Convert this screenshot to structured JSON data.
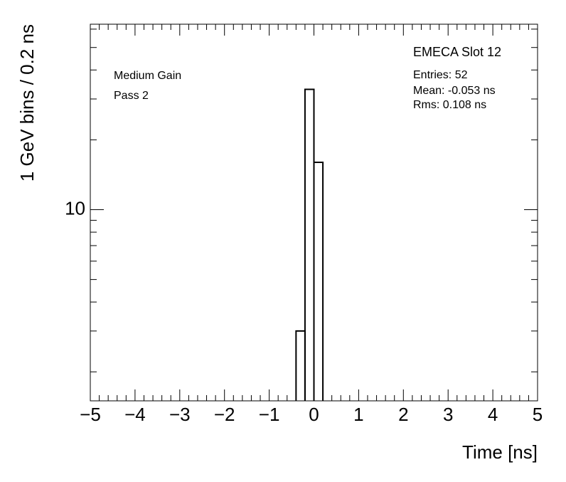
{
  "chart_data": {
    "type": "histogram",
    "xlabel": "Time [ns]",
    "ylabel": "1 GeV bins / 0.2 ns",
    "annotations": [
      "EMECA Slot 12",
      "Entries: 52",
      "Mean: -0.053 ns",
      "Rms: 0.108 ns",
      "Medium Gain",
      "Pass 2"
    ],
    "bins": [
      -0.4,
      -0.2,
      0,
      0.2
    ],
    "counts": [
      3,
      33,
      16
    ],
    "color": "#000000",
    "xlim": [
      -5,
      5
    ],
    "ylim": [
      1.5,
      63
    ],
    "log_y": true,
    "xticks": [
      {
        "value": -5,
        "label": "−5"
      },
      {
        "value": -4,
        "label": "−4"
      },
      {
        "value": -3,
        "label": "−3"
      },
      {
        "value": -2,
        "label": "−2"
      },
      {
        "value": -1,
        "label": "−1"
      },
      0,
      1,
      2,
      3,
      4,
      5
    ],
    "xminorticks": [
      -4.8,
      -4.6,
      -4.4,
      -4.2,
      -3.8,
      -3.6,
      -3.4,
      -3.2,
      -2.8,
      -2.6,
      -2.4,
      -2.2,
      -1.8,
      -1.6,
      -1.4,
      -1.2,
      -0.8,
      -0.6,
      -0.4,
      -0.2,
      0.2,
      0.4,
      0.6,
      0.8,
      1.2,
      1.4,
      1.6,
      1.8,
      2.2,
      2.4,
      2.6,
      2.8,
      3.2,
      3.4,
      3.6,
      3.8,
      4.2,
      4.4,
      4.6,
      4.8
    ],
    "yticks": [
      10
    ],
    "yminorticks": [
      2,
      3,
      4,
      5,
      6,
      7,
      8,
      9,
      20,
      30,
      40,
      50,
      60
    ]
  }
}
